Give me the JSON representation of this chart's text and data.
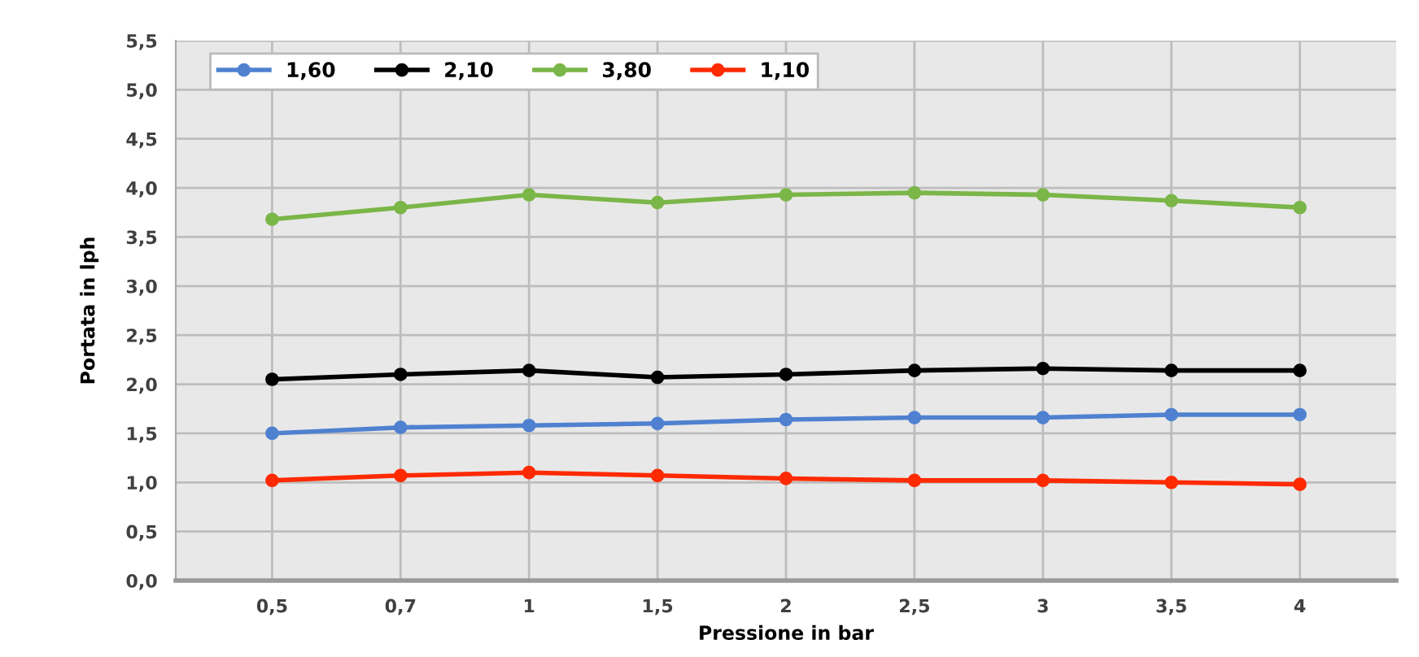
{
  "chart_data": {
    "type": "line",
    "xlabel": "Pressione in bar",
    "ylabel": "Portata in lph",
    "categories": [
      "0,5",
      "0,7",
      "1",
      "1,5",
      "2",
      "2,5",
      "3",
      "3,5",
      "4"
    ],
    "series": [
      {
        "name": "1,60",
        "color": "#4f81d0",
        "values": [
          1.5,
          1.56,
          1.58,
          1.6,
          1.64,
          1.66,
          1.66,
          1.69,
          1.69
        ]
      },
      {
        "name": "2,10",
        "color": "#000000",
        "values": [
          2.05,
          2.1,
          2.14,
          2.07,
          2.1,
          2.14,
          2.16,
          2.14,
          2.14
        ]
      },
      {
        "name": "3,80",
        "color": "#7ab648",
        "values": [
          3.68,
          3.8,
          3.93,
          3.85,
          3.93,
          3.95,
          3.93,
          3.87,
          3.8
        ]
      },
      {
        "name": "1,10",
        "color": "#ff2a00",
        "values": [
          1.02,
          1.07,
          1.1,
          1.07,
          1.04,
          1.02,
          1.02,
          1.0,
          0.98
        ]
      }
    ],
    "ylim": [
      0,
      5.5
    ],
    "yticks": [
      {
        "value": 0,
        "label": "0,0"
      },
      {
        "value": 0.5,
        "label": "0,5"
      },
      {
        "value": 1,
        "label": "1,0"
      },
      {
        "value": 1.5,
        "label": "1,5"
      },
      {
        "value": 2,
        "label": "2,0"
      },
      {
        "value": 2.5,
        "label": "2,5"
      },
      {
        "value": 3,
        "label": "3,0"
      },
      {
        "value": 3.5,
        "label": "3,5"
      },
      {
        "value": 4,
        "label": "4,0"
      },
      {
        "value": 4.5,
        "label": "4,5"
      },
      {
        "value": 5,
        "label": "5,0"
      },
      {
        "value": 5.5,
        "label": "5,5"
      }
    ],
    "grid": true,
    "legend": "top left",
    "marker": "circle",
    "line_style": "solid"
  }
}
